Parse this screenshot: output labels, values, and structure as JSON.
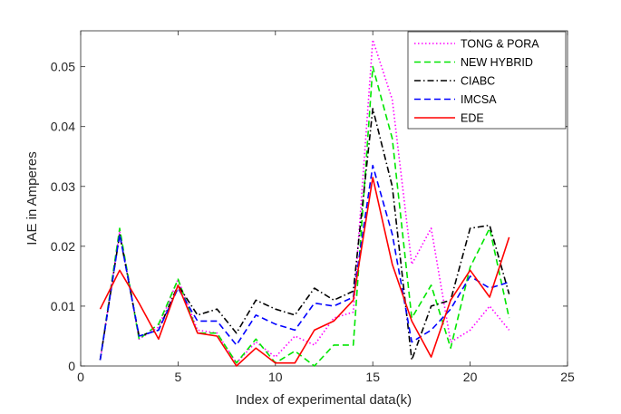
{
  "chart_data": {
    "type": "line",
    "title": "",
    "xlabel": "Index of experimental data(k)",
    "ylabel": "IAE in Amperes",
    "xlim": [
      0,
      25
    ],
    "ylim": [
      0,
      0.056
    ],
    "xticks": [
      0,
      5,
      10,
      15,
      20,
      25
    ],
    "yticks": [
      0,
      0.01,
      0.02,
      0.03,
      0.04,
      0.05
    ],
    "xtick_labels": [
      "0",
      "5",
      "10",
      "15",
      "20",
      "25"
    ],
    "ytick_labels": [
      "0",
      "0.01",
      "0.02",
      "0.03",
      "0.04",
      "0.05"
    ],
    "grid": false,
    "legend_position": "top-right",
    "x": [
      1,
      2,
      3,
      4,
      5,
      6,
      7,
      8,
      9,
      10,
      11,
      12,
      13,
      14,
      15,
      16,
      17,
      18,
      19,
      20,
      21,
      22
    ],
    "series": [
      {
        "name": "TONG & PORA",
        "color": "#ff00ff",
        "style": "dotted",
        "values": [
          0.001,
          0.0225,
          0.0045,
          0.0065,
          0.0145,
          0.006,
          0.0055,
          0.0005,
          0.004,
          0.0015,
          0.005,
          0.0035,
          0.008,
          0.009,
          0.0545,
          0.0445,
          0.017,
          0.023,
          0.004,
          0.006,
          0.01,
          0.006
        ]
      },
      {
        "name": "NEW HYBRID",
        "color": "#00e600",
        "style": "dashed",
        "values": [
          0.001,
          0.023,
          0.0045,
          0.007,
          0.0145,
          0.0055,
          0.0055,
          0.0005,
          0.0045,
          0.0005,
          0.0025,
          0.0,
          0.0035,
          0.0035,
          0.05,
          0.038,
          0.008,
          0.0135,
          0.003,
          0.0165,
          0.023,
          0.008
        ]
      },
      {
        "name": "CIABC",
        "color": "#000000",
        "style": "dashdot",
        "values": [
          0.001,
          0.022,
          0.005,
          0.006,
          0.0135,
          0.0085,
          0.0095,
          0.0055,
          0.011,
          0.0095,
          0.0085,
          0.013,
          0.011,
          0.0125,
          0.043,
          0.03,
          0.001,
          0.01,
          0.011,
          0.023,
          0.0235,
          0.012
        ]
      },
      {
        "name": "IMCSA",
        "color": "#0000ff",
        "style": "dashed",
        "values": [
          0.001,
          0.022,
          0.005,
          0.006,
          0.013,
          0.0075,
          0.0075,
          0.0035,
          0.0085,
          0.007,
          0.006,
          0.0105,
          0.01,
          0.0115,
          0.0335,
          0.022,
          0.004,
          0.006,
          0.0095,
          0.015,
          0.013,
          0.014
        ]
      },
      {
        "name": "EDE",
        "color": "#ff0000",
        "style": "solid",
        "values": [
          0.0095,
          0.016,
          0.0105,
          0.0045,
          0.0135,
          0.0055,
          0.005,
          0.0,
          0.003,
          0.0005,
          0.0005,
          0.006,
          0.0075,
          0.011,
          0.0315,
          0.017,
          0.0075,
          0.0015,
          0.011,
          0.016,
          0.0115,
          0.0215
        ]
      }
    ]
  }
}
